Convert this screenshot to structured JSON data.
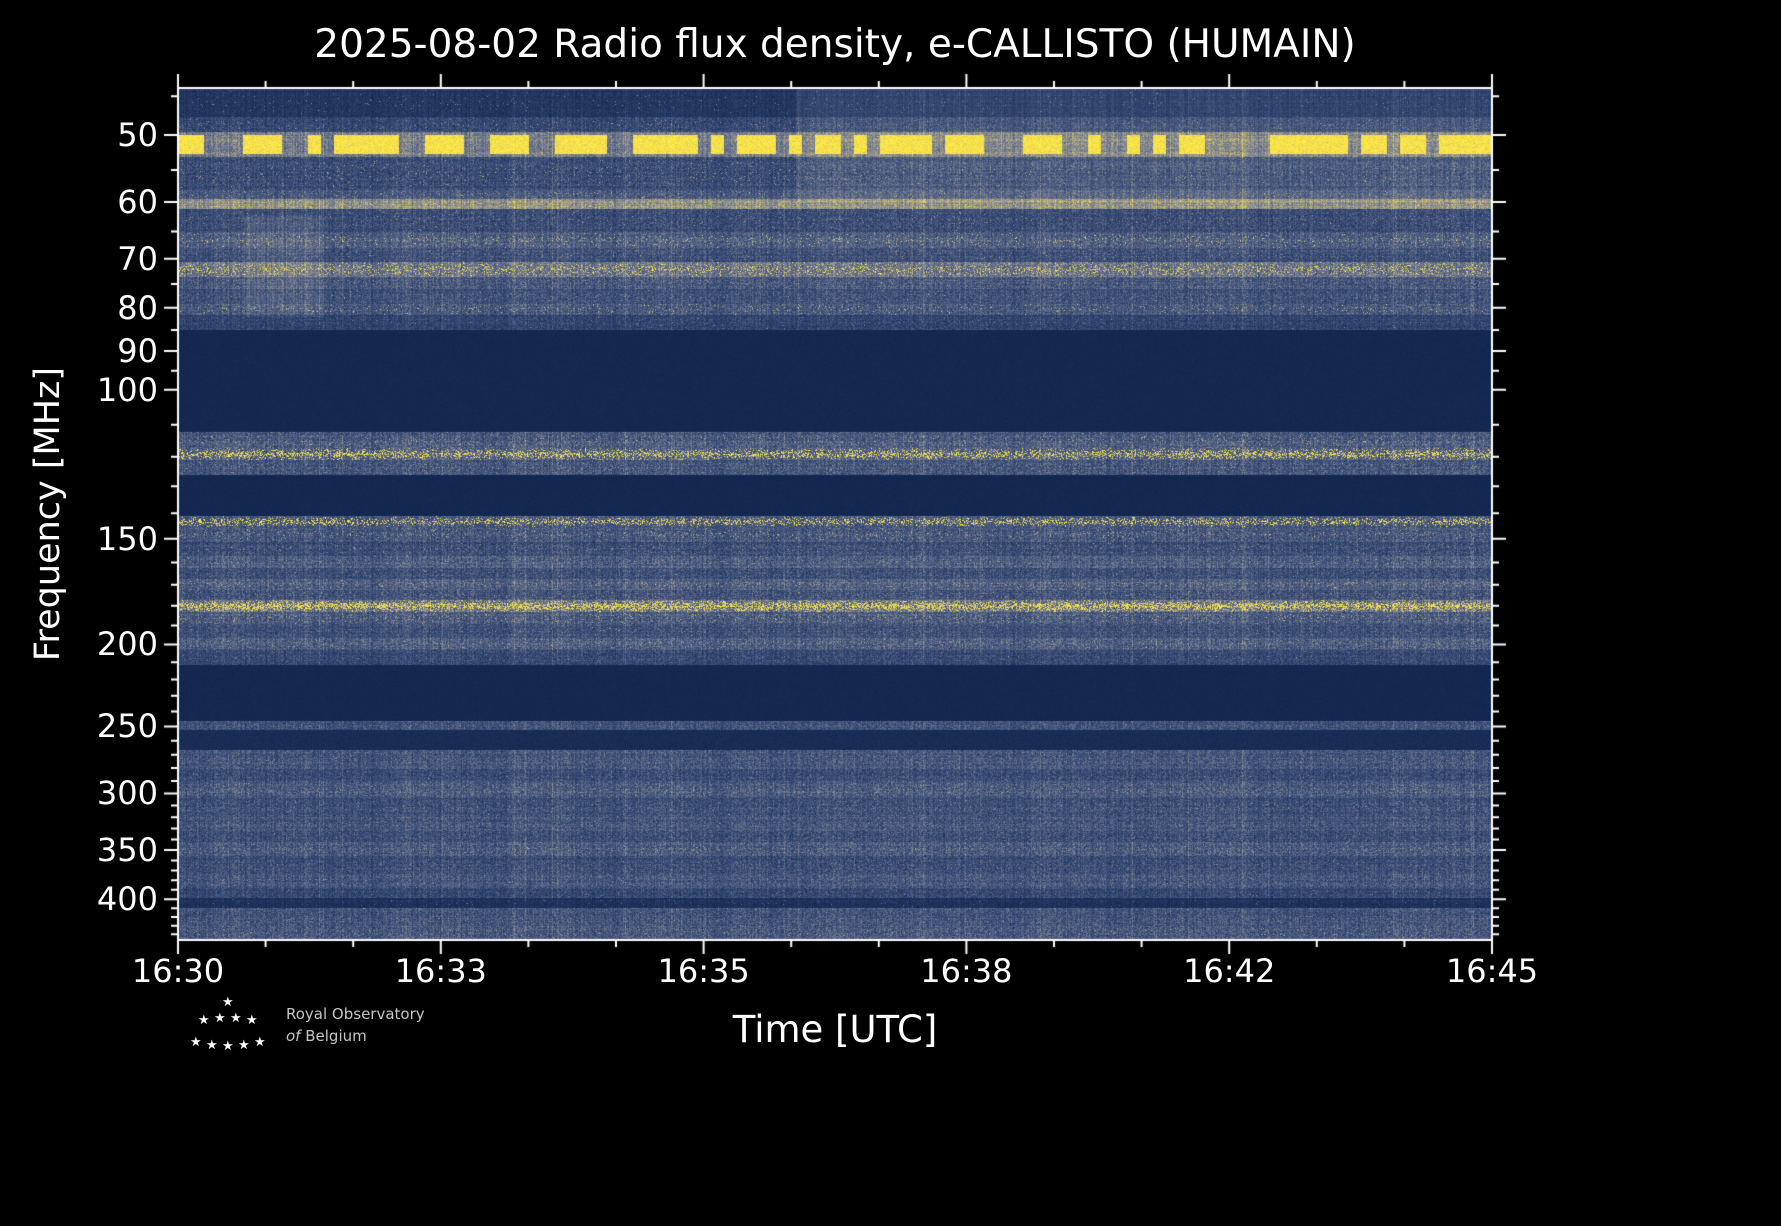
{
  "chart_data": {
    "type": "heatmap",
    "subtype": "radio-spectrogram",
    "title": "2025-08-02 Radio flux density, e-CALLISTO (HUMAIN)",
    "xlabel": "Time [UTC]",
    "ylabel": "Frequency [MHz]",
    "x_ticks": [
      "16:30",
      "16:33",
      "16:35",
      "16:38",
      "16:42",
      "16:45"
    ],
    "x_total_minutes": 15,
    "y_ticks": [
      50,
      60,
      70,
      80,
      90,
      100,
      150,
      200,
      250,
      300,
      350,
      400
    ],
    "y_minor_ticks": [
      45,
      55,
      65,
      75,
      85,
      95,
      110,
      120,
      130,
      140,
      160,
      170,
      180,
      190,
      210,
      220,
      230,
      240,
      260,
      270,
      280,
      290,
      310,
      320,
      330,
      340,
      360,
      370,
      380,
      390,
      410,
      420,
      430,
      440
    ],
    "y_scale": "log",
    "y_range_mhz": [
      44,
      447
    ],
    "grid": false,
    "legend": "none",
    "color_stops": [
      {
        "t": 0.0,
        "rgb": [
          7,
          28,
          68
        ]
      },
      {
        "t": 0.25,
        "rgb": [
          60,
          79,
          121
        ]
      },
      {
        "t": 0.5,
        "rgb": [
          130,
          134,
          148
        ]
      },
      {
        "t": 0.75,
        "rgb": [
          200,
          188,
          110
        ]
      },
      {
        "t": 1.0,
        "rgb": [
          255,
          233,
          69
        ]
      }
    ],
    "bands": [
      {
        "from": 44,
        "to": 47.5,
        "base": 0.13,
        "noise": 0.05,
        "spk": 0.01,
        "spkv": 0.5
      },
      {
        "from": 47.5,
        "to": 49.5,
        "base": 0.22,
        "noise": 0.09,
        "spk": 0.02,
        "spkv": 0.6
      },
      {
        "from": 49.5,
        "to": 53,
        "base": 0.46,
        "noise": 0.13,
        "spk": 0.62,
        "spkv": 1,
        "dash": 13
      },
      {
        "from": 53,
        "to": 58,
        "base": 0.24,
        "noise": 0.1,
        "spk": 0.02,
        "spkv": 0.65
      },
      {
        "from": 58,
        "to": 59.5,
        "base": 0.3,
        "noise": 0.1,
        "spk": 0.04,
        "spkv": 0.7
      },
      {
        "from": 59.5,
        "to": 61,
        "base": 0.55,
        "noise": 0.12,
        "spk": 0.08,
        "spkv": 0.85
      },
      {
        "from": 61,
        "to": 65,
        "base": 0.24,
        "noise": 0.1,
        "spk": 0.02,
        "spkv": 0.6
      },
      {
        "from": 65,
        "to": 68,
        "base": 0.33,
        "noise": 0.12,
        "spk": 0.04,
        "spkv": 0.85
      },
      {
        "from": 68,
        "to": 70.5,
        "base": 0.26,
        "noise": 0.1,
        "spk": 0.02,
        "spkv": 0.6
      },
      {
        "from": 70.5,
        "to": 73.5,
        "base": 0.42,
        "noise": 0.14,
        "spk": 0.15,
        "spkv": 0.95
      },
      {
        "from": 73.5,
        "to": 76,
        "base": 0.3,
        "noise": 0.12,
        "spk": 0.02,
        "spkv": 0.6
      },
      {
        "from": 76,
        "to": 79,
        "base": 0.26,
        "noise": 0.1,
        "spk": 0.02,
        "spkv": 0.55
      },
      {
        "from": 79,
        "to": 81.5,
        "base": 0.3,
        "noise": 0.12,
        "spk": 0.03,
        "spkv": 0.8
      },
      {
        "from": 81.5,
        "to": 85,
        "base": 0.2,
        "noise": 0.08,
        "spk": 0.01,
        "spkv": 0.5
      },
      {
        "from": 85,
        "to": 112,
        "base": 0.06,
        "noise": 0.012,
        "spk": 0,
        "spkv": 0,
        "flat": 1
      },
      {
        "from": 112,
        "to": 117,
        "base": 0.3,
        "noise": 0.12,
        "spk": 0.03,
        "spkv": 0.7
      },
      {
        "from": 117,
        "to": 121,
        "base": 0.33,
        "noise": 0.13,
        "spk": 0.28,
        "spkv": 1
      },
      {
        "from": 121,
        "to": 126,
        "base": 0.28,
        "noise": 0.11,
        "spk": 0.03,
        "spkv": 0.6
      },
      {
        "from": 126,
        "to": 141,
        "base": 0.06,
        "noise": 0.012,
        "spk": 0,
        "spkv": 0,
        "flat": 1
      },
      {
        "from": 141,
        "to": 145,
        "base": 0.3,
        "noise": 0.12,
        "spk": 0.24,
        "spkv": 1
      },
      {
        "from": 145,
        "to": 151,
        "base": 0.28,
        "noise": 0.11,
        "spk": 0.04,
        "spkv": 0.7
      },
      {
        "from": 151,
        "to": 157,
        "base": 0.24,
        "noise": 0.1,
        "spk": 0.02,
        "spkv": 0.6
      },
      {
        "from": 157,
        "to": 162,
        "base": 0.32,
        "noise": 0.12,
        "spk": 0.03,
        "spkv": 0.6
      },
      {
        "from": 162,
        "to": 167,
        "base": 0.25,
        "noise": 0.1,
        "spk": 0.02,
        "spkv": 0.55
      },
      {
        "from": 167,
        "to": 172,
        "base": 0.33,
        "noise": 0.12,
        "spk": 0.04,
        "spkv": 0.7
      },
      {
        "from": 172,
        "to": 177,
        "base": 0.27,
        "noise": 0.11,
        "spk": 0.03,
        "spkv": 0.6
      },
      {
        "from": 177,
        "to": 183,
        "base": 0.4,
        "noise": 0.15,
        "spk": 0.38,
        "spkv": 1
      },
      {
        "from": 183,
        "to": 189,
        "base": 0.31,
        "noise": 0.12,
        "spk": 0.05,
        "spkv": 0.7
      },
      {
        "from": 189,
        "to": 196,
        "base": 0.26,
        "noise": 0.1,
        "spk": 0.02,
        "spkv": 0.55
      },
      {
        "from": 196,
        "to": 203,
        "base": 0.32,
        "noise": 0.12,
        "spk": 0.04,
        "spkv": 0.65
      },
      {
        "from": 203,
        "to": 211,
        "base": 0.22,
        "noise": 0.09,
        "spk": 0.01,
        "spkv": 0.5
      },
      {
        "from": 211,
        "to": 246,
        "base": 0.06,
        "noise": 0.012,
        "spk": 0,
        "spkv": 0,
        "flat": 1
      },
      {
        "from": 246,
        "to": 252,
        "base": 0.26,
        "noise": 0.1,
        "spk": 0.02,
        "spkv": 0.5
      },
      {
        "from": 252,
        "to": 266,
        "base": 0.08,
        "noise": 0.02,
        "spk": 0,
        "spkv": 0,
        "flat": 1
      },
      {
        "from": 266,
        "to": 280,
        "base": 0.28,
        "noise": 0.11,
        "spk": 0.02,
        "spkv": 0.5
      },
      {
        "from": 280,
        "to": 290,
        "base": 0.24,
        "noise": 0.1,
        "spk": 0.02,
        "spkv": 0.5
      },
      {
        "from": 290,
        "to": 303,
        "base": 0.31,
        "noise": 0.12,
        "spk": 0.03,
        "spkv": 0.6
      },
      {
        "from": 303,
        "to": 318,
        "base": 0.25,
        "noise": 0.1,
        "spk": 0.02,
        "spkv": 0.55
      },
      {
        "from": 318,
        "to": 332,
        "base": 0.28,
        "noise": 0.11,
        "spk": 0.02,
        "spkv": 0.5
      },
      {
        "from": 332,
        "to": 342,
        "base": 0.24,
        "noise": 0.1,
        "spk": 0.02,
        "spkv": 0.5
      },
      {
        "from": 342,
        "to": 355,
        "base": 0.3,
        "noise": 0.12,
        "spk": 0.03,
        "spkv": 0.6
      },
      {
        "from": 355,
        "to": 372,
        "base": 0.24,
        "noise": 0.1,
        "spk": 0.02,
        "spkv": 0.5
      },
      {
        "from": 372,
        "to": 388,
        "base": 0.28,
        "noise": 0.11,
        "spk": 0.02,
        "spkv": 0.55
      },
      {
        "from": 388,
        "to": 398,
        "base": 0.22,
        "noise": 0.09,
        "spk": 0.01,
        "spkv": 0.5
      },
      {
        "from": 398,
        "to": 409,
        "base": 0.11,
        "noise": 0.04,
        "spk": 0.01,
        "spkv": 0.4
      },
      {
        "from": 409,
        "to": 412,
        "base": 0.3,
        "noise": 0.1,
        "spk": 0.03,
        "spkv": 0.6
      },
      {
        "from": 412,
        "to": 430,
        "base": 0.27,
        "noise": 0.11,
        "spk": 0.02,
        "spkv": 0.5
      },
      {
        "from": 430,
        "to": 447,
        "base": 0.3,
        "noise": 0.12,
        "spk": 0.03,
        "spkv": 0.6
      }
    ],
    "patches": [
      {
        "x1": 0.47,
        "x2": 1.0,
        "f1": 44,
        "f2": 60,
        "add": 0.07
      },
      {
        "x1": 0.05,
        "x2": 0.11,
        "f1": 62,
        "f2": 82,
        "add": 0.07
      }
    ]
  },
  "icons": {
    "star": "★"
  },
  "logo": {
    "line1": "Royal Observatory",
    "line2_italic": "of",
    "line2_rest": "Belgium"
  }
}
